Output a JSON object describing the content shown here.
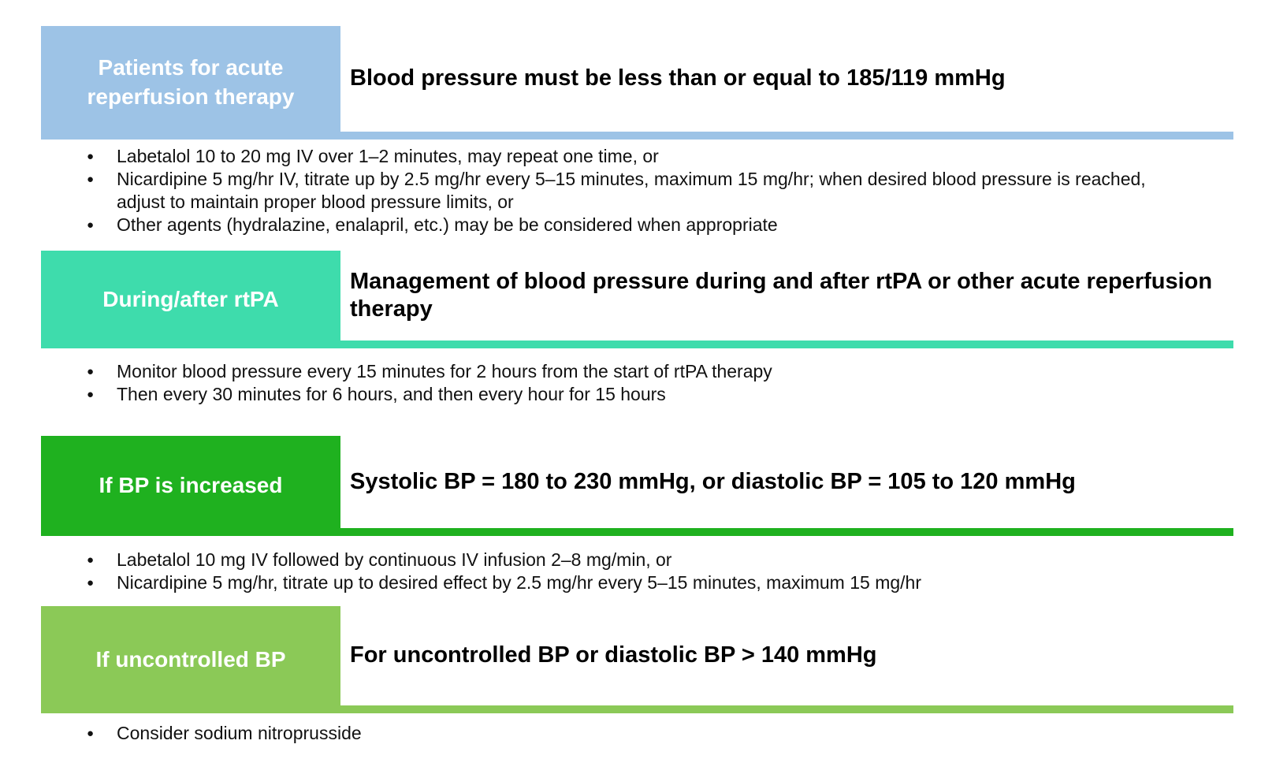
{
  "figure": {
    "background_color": "#ffffff",
    "bullet_glyph": "●",
    "heading_text_color": "#000000",
    "label_text_color": "#ffffff",
    "body_text_color": "#111111"
  },
  "sections": [
    {
      "label": "Patients for acute reperfusion therapy",
      "heading": "Blood pressure must be less than or equal to 185/119 mmHg",
      "color": "#9DC3E6",
      "bullets": [
        "Labetalol 10 to 20 mg IV over 1–2 minutes, may repeat one time, or",
        "Nicardipine 5 mg/hr IV, titrate up by 2.5 mg/hr every 5–15 minutes, maximum 15 mg/hr; when desired blood pressure is reached, adjust to maintain proper blood pressure limits, or",
        "Other agents (hydralazine, enalapril, etc.) may be be considered when appropriate"
      ]
    },
    {
      "label": "During/after rtPA",
      "heading": "Management of blood pressure during and after rtPA or other acute reperfusion therapy",
      "color": "#3EDCAC",
      "bullets": [
        "Monitor blood pressure every 15 minutes for 2 hours from the start of rtPA therapy",
        "Then every 30 minutes for 6 hours, and then every hour for 15 hours"
      ]
    },
    {
      "label": "If BP is increased",
      "heading": "Systolic BP = 180 to 230 mmHg, or diastolic BP = 105 to 120 mmHg",
      "color": "#1FB11F",
      "bullets": [
        "Labetalol 10 mg IV followed by continuous IV infusion 2–8 mg/min, or",
        "Nicardipine 5 mg/hr, titrate up to desired effect by 2.5 mg/hr every 5–15 minutes, maximum 15 mg/hr"
      ]
    },
    {
      "label": "If uncontrolled BP",
      "heading": "For uncontrolled BP or diastolic BP > 140 mmHg",
      "color": "#8BC957",
      "bullets": [
        "Consider sodium nitroprusside"
      ]
    }
  ]
}
